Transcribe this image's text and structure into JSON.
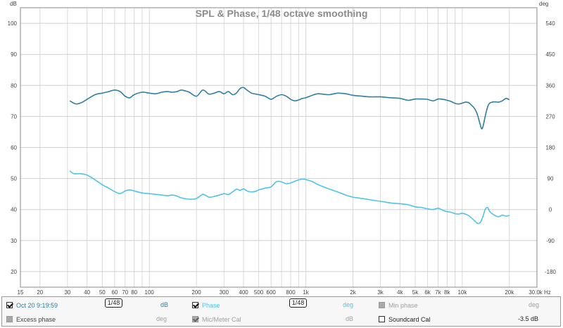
{
  "chart_data": {
    "type": "line",
    "title": "SPL & Phase, 1/48 octave smoothing",
    "x_axis": {
      "scale": "log",
      "unit": "Hz",
      "range": [
        15,
        30000
      ],
      "tick_values": [
        15,
        20,
        30,
        40,
        50,
        60,
        70,
        80,
        100,
        200,
        300,
        400,
        500,
        600,
        800,
        1000,
        2000,
        3000,
        4000,
        5000,
        6000,
        7000,
        8000,
        10000,
        20000,
        30000
      ],
      "tick_labels": [
        "15",
        "20",
        "30",
        "40",
        "50",
        "60",
        "70",
        "80",
        "100",
        "200",
        "300",
        "400",
        "500",
        "600",
        "800",
        "1k",
        "2k",
        "3k",
        "4k",
        "5k",
        "6k",
        "7k",
        "8k",
        "10k",
        "20k",
        "30.0k Hz"
      ]
    },
    "y_left": {
      "unit": "dB",
      "range": [
        15,
        105
      ],
      "ticks": [
        20,
        30,
        40,
        50,
        60,
        70,
        80,
        90,
        100
      ]
    },
    "y_right": {
      "unit": "deg",
      "range": [
        -225,
        585
      ],
      "ticks": [
        -180,
        -90,
        0,
        90,
        180,
        270,
        360,
        450,
        540
      ]
    },
    "grid": true,
    "series": [
      {
        "name": "Oct 20 9:19:59",
        "axis": "left",
        "color": "#2e7fa3",
        "x": [
          31,
          34,
          37,
          40,
          45,
          50,
          55,
          60,
          65,
          70,
          75,
          80,
          90,
          100,
          110,
          120,
          130,
          140,
          150,
          160,
          170,
          180,
          200,
          220,
          240,
          260,
          280,
          300,
          320,
          340,
          360,
          380,
          400,
          420,
          450,
          480,
          500,
          550,
          600,
          650,
          700,
          750,
          800,
          850,
          900,
          950,
          1000,
          1100,
          1200,
          1400,
          1600,
          1800,
          2000,
          2300,
          2600,
          3000,
          3500,
          4000,
          4500,
          5000,
          5500,
          6000,
          6500,
          7000,
          7500,
          8000,
          8500,
          9000,
          9500,
          10000,
          10500,
          11000,
          11500,
          12000,
          12500,
          13000,
          13300,
          13600,
          14000,
          14500,
          15000,
          16000,
          17000,
          18000,
          19000,
          20000
        ],
        "y": [
          75.0,
          74.0,
          74.5,
          75.5,
          77.0,
          77.5,
          78.0,
          78.5,
          78.0,
          76.5,
          76.0,
          77.0,
          77.8,
          77.5,
          77.3,
          77.8,
          78.0,
          77.8,
          78.0,
          78.5,
          78.2,
          77.8,
          76.5,
          78.5,
          77.2,
          77.5,
          78.0,
          77.3,
          78.0,
          77.0,
          77.5,
          79.0,
          79.3,
          78.5,
          77.5,
          77.2,
          77.0,
          76.5,
          75.5,
          76.5,
          77.0,
          76.5,
          75.5,
          75.0,
          75.3,
          75.8,
          76.0,
          76.8,
          77.3,
          77.0,
          77.5,
          77.3,
          76.8,
          76.5,
          76.3,
          76.3,
          76.0,
          75.8,
          75.2,
          75.6,
          75.6,
          75.5,
          75.0,
          75.6,
          75.5,
          75.2,
          74.8,
          74.2,
          74.0,
          74.3,
          74.6,
          74.4,
          73.5,
          72.5,
          70.5,
          67.5,
          66.0,
          67.0,
          70.0,
          73.0,
          74.3,
          74.7,
          74.6,
          75.0,
          75.8,
          75.4
        ]
      },
      {
        "name": "Phase",
        "axis": "right",
        "color": "#4fc3e8",
        "x": [
          31,
          33,
          36,
          40,
          45,
          50,
          55,
          60,
          65,
          70,
          75,
          80,
          90,
          100,
          110,
          120,
          130,
          140,
          150,
          160,
          180,
          200,
          220,
          240,
          260,
          280,
          300,
          320,
          340,
          360,
          380,
          400,
          420,
          450,
          480,
          500,
          550,
          600,
          650,
          700,
          750,
          800,
          850,
          900,
          950,
          1000,
          1100,
          1200,
          1400,
          1600,
          1800,
          2000,
          2300,
          2600,
          3000,
          3500,
          4000,
          4500,
          5000,
          5500,
          6000,
          6500,
          7000,
          7500,
          8000,
          8500,
          9000,
          9500,
          10000,
          11000,
          12000,
          12500,
          13000,
          13500,
          14000,
          14500,
          15000,
          16000,
          17000,
          18000,
          19000,
          20000
        ],
        "y": [
          112,
          104,
          104,
          100,
          86,
          72,
          62,
          52,
          46,
          54,
          57,
          54,
          48,
          46,
          44,
          42,
          40,
          42,
          39,
          34,
          30,
          32,
          44,
          36,
          38,
          42,
          46,
          44,
          51,
          59,
          56,
          60,
          54,
          51,
          53,
          57,
          62,
          66,
          81,
          80,
          75,
          77,
          82,
          86,
          88,
          87,
          81,
          72,
          60,
          51,
          42,
          36,
          32,
          28,
          24,
          19,
          17,
          14,
          8,
          6,
          2,
          0,
          4,
          -2,
          -6,
          -8,
          -12,
          -13,
          -11,
          -18,
          -33,
          -40,
          -38,
          -22,
          0,
          6,
          -6,
          -16,
          -21,
          -16,
          -19,
          -17
        ]
      }
    ]
  },
  "legend": {
    "row1": [
      {
        "label": "Oct 20 9:19:59",
        "checked": true,
        "smoothing": "1/48",
        "unit": "dB"
      },
      {
        "label": "Phase",
        "checked": true,
        "smoothing": "1/48",
        "unit": "deg"
      },
      {
        "label": "Min phase",
        "checked": false,
        "unit": "deg"
      }
    ],
    "row2": [
      {
        "label": "Excess phase",
        "checked": false,
        "unit": "deg"
      },
      {
        "label": "Mic/Meter Cal",
        "checked": true,
        "unit": "dB"
      },
      {
        "label": "Soundcard Cal",
        "checked": false,
        "unit": "-3.5 dB"
      }
    ]
  }
}
